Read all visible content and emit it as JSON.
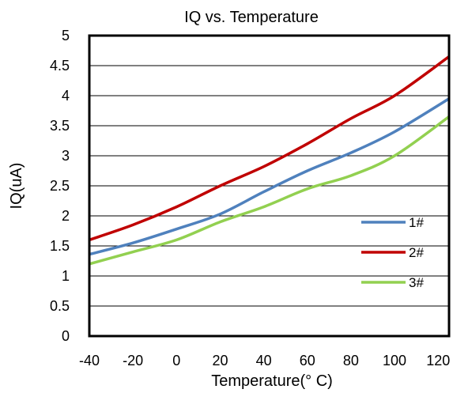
{
  "chart_data": {
    "type": "line",
    "title": "IQ vs. Temperature",
    "xlabel": "Temperature(° C)",
    "ylabel": "IQ(uA)",
    "xlim": [
      -40,
      125
    ],
    "ylim": [
      0,
      5
    ],
    "x_ticks": [
      -40,
      -20,
      0,
      20,
      40,
      60,
      80,
      100,
      120
    ],
    "x_tick_labels": [
      "-40",
      "-20",
      "0",
      "20",
      "40",
      "60",
      "80",
      "100",
      "120"
    ],
    "y_ticks": [
      0,
      0.5,
      1,
      1.5,
      2,
      2.5,
      3,
      3.5,
      4,
      4.5,
      5
    ],
    "y_tick_labels": [
      "0",
      "0.5",
      "1",
      "1.5",
      "2",
      "2.5",
      "3",
      "3.5",
      "4",
      "4.5",
      "5"
    ],
    "grid": "horizontal",
    "legend_position": "right",
    "series": [
      {
        "name": "1#",
        "color": "#4f81bd",
        "points": [
          [
            -40,
            1.36
          ],
          [
            -20,
            1.55
          ],
          [
            0,
            1.78
          ],
          [
            20,
            2.03
          ],
          [
            40,
            2.4
          ],
          [
            60,
            2.75
          ],
          [
            80,
            3.05
          ],
          [
            100,
            3.4
          ],
          [
            125,
            3.95
          ]
        ]
      },
      {
        "name": "2#",
        "color": "#c00000",
        "points": [
          [
            -40,
            1.6
          ],
          [
            -20,
            1.85
          ],
          [
            0,
            2.15
          ],
          [
            20,
            2.5
          ],
          [
            40,
            2.82
          ],
          [
            60,
            3.2
          ],
          [
            80,
            3.62
          ],
          [
            100,
            4.0
          ],
          [
            125,
            4.65
          ]
        ]
      },
      {
        "name": "3#",
        "color": "#92d050",
        "points": [
          [
            -40,
            1.2
          ],
          [
            -20,
            1.4
          ],
          [
            0,
            1.6
          ],
          [
            20,
            1.9
          ],
          [
            40,
            2.15
          ],
          [
            60,
            2.45
          ],
          [
            80,
            2.67
          ],
          [
            100,
            3.0
          ],
          [
            125,
            3.65
          ]
        ]
      }
    ]
  }
}
